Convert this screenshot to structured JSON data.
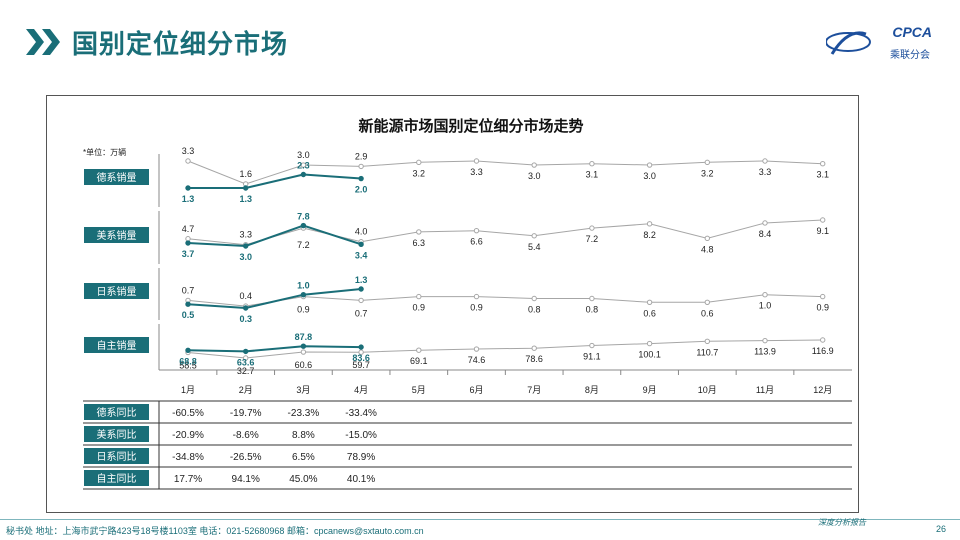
{
  "page": {
    "title": "国别定位细分市场",
    "logo_text": "CPCA",
    "logo_sub": "乘联分会",
    "footer_left": "秘书处  地址：上海市武宁路423号18号楼1103室  电话：021-52680968   邮箱：cpcanews@sxtauto.com.cn",
    "footer_right": "深度分析报告",
    "page_number": "26"
  },
  "chart_data": {
    "type": "line",
    "title": "新能源市场国别定位细分市场走势",
    "unit_note": "*单位：万辆",
    "categories": [
      "1月",
      "2月",
      "3月",
      "4月",
      "5月",
      "6月",
      "7月",
      "8月",
      "9月",
      "10月",
      "11月",
      "12月"
    ],
    "panels": [
      {
        "label": "德系销量",
        "series": [
          {
            "role": "prev",
            "color": "#a6a6a6",
            "values": [
              3.3,
              1.6,
              3.0,
              2.9,
              3.2,
              3.3,
              3.0,
              3.1,
              3.0,
              3.2,
              3.3,
              3.1
            ]
          },
          {
            "role": "curr",
            "color": "#1a6e78",
            "values": [
              1.3,
              1.3,
              2.3,
              2.0
            ]
          }
        ]
      },
      {
        "label": "美系销量",
        "series": [
          {
            "role": "prev",
            "color": "#a6a6a6",
            "values": [
              4.7,
              3.3,
              7.2,
              4.0,
              6.3,
              6.6,
              5.4,
              7.2,
              8.2,
              4.8,
              8.4,
              9.1
            ]
          },
          {
            "role": "curr",
            "color": "#1a6e78",
            "values": [
              3.7,
              3.0,
              7.8,
              3.4
            ]
          }
        ]
      },
      {
        "label": "日系销量",
        "series": [
          {
            "role": "prev",
            "color": "#a6a6a6",
            "values": [
              0.7,
              0.4,
              0.9,
              0.7,
              0.9,
              0.9,
              0.8,
              0.8,
              0.6,
              0.6,
              1.0,
              0.9
            ]
          },
          {
            "role": "curr",
            "color": "#1a6e78",
            "values": [
              0.5,
              0.3,
              1.0,
              1.3
            ]
          }
        ]
      },
      {
        "label": "自主销量",
        "series": [
          {
            "role": "prev",
            "color": "#a6a6a6",
            "values": [
              58.5,
              32.7,
              60.6,
              59.7,
              69.1,
              74.6,
              78.6,
              91.1,
              100.1,
              110.7,
              113.9,
              116.9
            ]
          },
          {
            "role": "curr",
            "color": "#1a6e78",
            "values": [
              68.8,
              63.6,
              87.8,
              83.6
            ]
          }
        ]
      }
    ],
    "table": {
      "rows": [
        {
          "label": "德系同比",
          "values": [
            "-60.5%",
            "-19.7%",
            "-23.3%",
            "-33.4%"
          ]
        },
        {
          "label": "美系同比",
          "values": [
            "-20.9%",
            "-8.6%",
            "8.8%",
            "-15.0%"
          ]
        },
        {
          "label": "日系同比",
          "values": [
            "-34.8%",
            "-26.5%",
            "6.5%",
            "78.9%"
          ]
        },
        {
          "label": "自主同比",
          "values": [
            "17.7%",
            "94.1%",
            "45.0%",
            "40.1%"
          ]
        }
      ]
    }
  },
  "colors": {
    "accent": "#1a6e78",
    "grey_line": "#a6a6a6",
    "label_bg": "#1a6e78"
  }
}
